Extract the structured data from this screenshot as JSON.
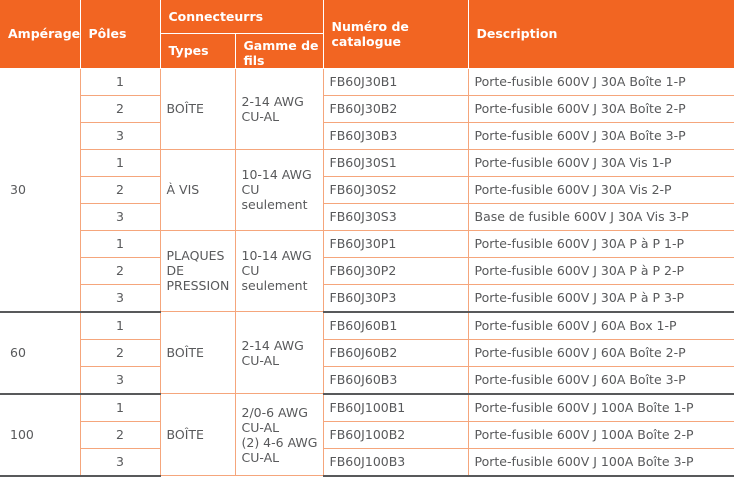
{
  "headers": {
    "amperage": "Ampérage",
    "poles": "Pôles",
    "connectors": "Connecteurrs",
    "types": "Types",
    "wire_range": "Gamme de fils",
    "catalog_number": "Numéro de catalogue",
    "description": "Description"
  },
  "groups": [
    {
      "amperage": "30",
      "subgroups": [
        {
          "type": "BOÎTE",
          "wire": [
            "2-14 AWG",
            "CU-AL"
          ],
          "rows": [
            {
              "pole": "1",
              "catalog": "FB60J30B1",
              "description": "Porte-fusible 600V J 30A Boîte 1-P"
            },
            {
              "pole": "2",
              "catalog": "FB60J30B2",
              "description": "Porte-fusible 600V J 30A Boîte 2-P"
            },
            {
              "pole": "3",
              "catalog": "FB60J30B3",
              "description": "Porte-fusible 600V J 30A Boîte 3-P"
            }
          ]
        },
        {
          "type": "À VIS",
          "wire": [
            "10-14 AWG",
            "CU",
            "seulement"
          ],
          "rows": [
            {
              "pole": "1",
              "catalog": "FB60J30S1",
              "description": "Porte-fusible 600V J 30A Vis 1-P"
            },
            {
              "pole": "2",
              "catalog": "FB60J30S2",
              "description": "Porte-fusible 600V J 30A Vis 2-P"
            },
            {
              "pole": "3",
              "catalog": "FB60J30S3",
              "description": "Base de fusible 600V J 30A Vis 3-P"
            }
          ]
        },
        {
          "type": "PLAQUES DE PRESSION",
          "wire": [
            "10-14 AWG",
            "CU",
            "seulement"
          ],
          "rows": [
            {
              "pole": "1",
              "catalog": "FB60J30P1",
              "description": "Porte-fusible 600V J 30A P à P 1-P"
            },
            {
              "pole": "2",
              "catalog": "FB60J30P2",
              "description": "Porte-fusible 600V J 30A P à P 2-P"
            },
            {
              "pole": "3",
              "catalog": "FB60J30P3",
              "description": "Porte-fusible 600V J 30A P à P 3-P"
            }
          ]
        }
      ]
    },
    {
      "amperage": "60",
      "subgroups": [
        {
          "type": "BOÎTE",
          "wire": [
            "2-14 AWG",
            "CU-AL"
          ],
          "rows": [
            {
              "pole": "1",
              "catalog": "FB60J60B1",
              "description": "Porte-fusible 600V J 60A Box 1-P"
            },
            {
              "pole": "2",
              "catalog": "FB60J60B2",
              "description": "Porte-fusible 600V J 60A Boîte 2-P"
            },
            {
              "pole": "3",
              "catalog": "FB60J60B3",
              "description": "Porte-fusible 600V J 60A Boîte 3-P"
            }
          ]
        }
      ]
    },
    {
      "amperage": "100",
      "subgroups": [
        {
          "type": "BOÎTE",
          "wire": [
            "2/0-6 AWG",
            "CU-AL",
            "(2) 4-6 AWG",
            "CU-AL"
          ],
          "rows": [
            {
              "pole": "1",
              "catalog": "FB60J100B1",
              "description": "Porte-fusible 600V J 100A Boîte 1-P"
            },
            {
              "pole": "2",
              "catalog": "FB60J100B2",
              "description": "Porte-fusible 600V J 100A Boîte 2-P"
            },
            {
              "pole": "3",
              "catalog": "FB60J100B3",
              "description": "Porte-fusible 600V J 100A Boîte 3-P"
            }
          ]
        }
      ]
    }
  ]
}
